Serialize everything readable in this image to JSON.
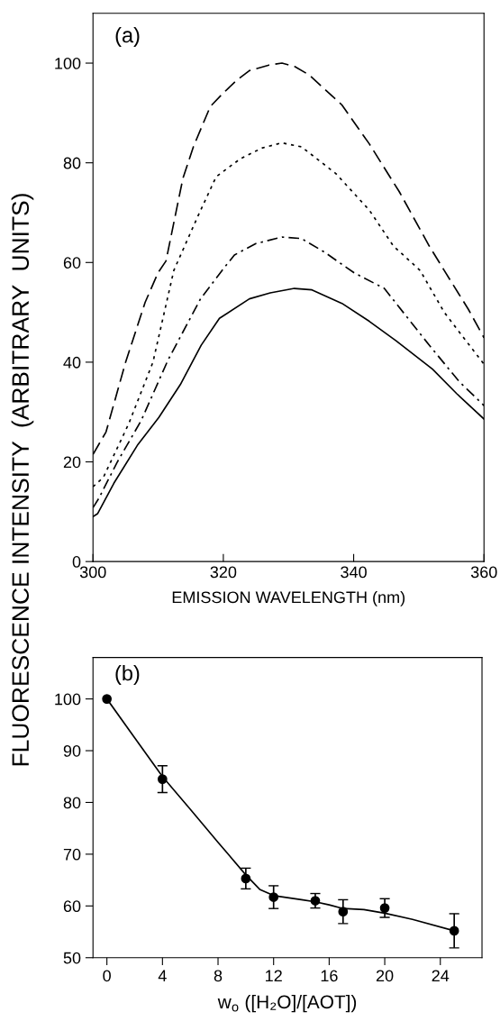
{
  "chart_data": [
    {
      "type": "line",
      "xlabel": "EMISSION WAVELENGTH (nm)",
      "ylabel": "FLUORESCENCE INTENSITY  (ARBITRARY  UNITS)",
      "annotations": [
        "(a)"
      ],
      "xlim": [
        300,
        360
      ],
      "xticks": [
        300,
        320,
        340,
        360
      ],
      "ylim": [
        0,
        110
      ],
      "yticks": [
        0,
        20,
        40,
        60,
        80,
        100
      ],
      "grid": false,
      "marker": "none",
      "series": [
        {
          "color": "#000000",
          "line_style": "dashed",
          "x": [
            300,
            302,
            305,
            308,
            310,
            311.2,
            313.8,
            315.4,
            318,
            320,
            322,
            324,
            327,
            329,
            331,
            333.2,
            338.2,
            342.4,
            347,
            351.6,
            353.9,
            357.6,
            360
          ],
          "values": [
            21.5,
            26,
            40,
            52,
            58,
            60.3,
            76.9,
            83.2,
            91.3,
            94,
            96.5,
            98.5,
            99.6,
            100,
            99.3,
            97.6,
            91.6,
            83.8,
            74.2,
            63.3,
            58.4,
            50.6,
            44.9
          ]
        },
        {
          "color": "#000000",
          "line_style": "dotted",
          "x": [
            300,
            301.6,
            305.5,
            309.2,
            312.4,
            316.1,
            318.9,
            322.6,
            326,
            329,
            332,
            337.3,
            342.4,
            346.1,
            350.2,
            353.9,
            356.7,
            360
          ],
          "values": [
            15,
            16.9,
            27.7,
            40,
            58.4,
            69.3,
            77.2,
            80.8,
            83,
            84,
            83.2,
            77.8,
            70.5,
            63.3,
            58.4,
            50,
            45.2,
            39.6
          ]
        },
        {
          "color": "#000000",
          "line_style": "dashdot",
          "x": [
            300,
            300.9,
            303.7,
            307.4,
            311.5,
            316.5,
            319.8,
            321.7,
            325,
            329,
            332,
            335.5,
            340.1,
            344.7,
            351.6,
            356.2,
            360
          ],
          "values": [
            10.8,
            12.7,
            19.9,
            28.3,
            40.4,
            52.7,
            58.4,
            61.5,
            63.8,
            65.1,
            64.8,
            62.1,
            57.9,
            54.8,
            43.4,
            36.1,
            31.3
          ]
        },
        {
          "color": "#000000",
          "line_style": "solid",
          "x": [
            300,
            300.7,
            303.2,
            306.9,
            310.1,
            313.4,
            316.6,
            319.4,
            324,
            327.2,
            330.9,
            333.6,
            338.2,
            342.4,
            346.5,
            352.1,
            355.8,
            360
          ],
          "values": [
            9,
            9.6,
            15.7,
            23.5,
            28.9,
            35.5,
            43.4,
            48.8,
            52.7,
            53.9,
            54.8,
            54.5,
            51.8,
            48.2,
            44.3,
            38.6,
            33.7,
            28.6
          ]
        }
      ]
    },
    {
      "type": "scatter",
      "xlabel": "w$_{o}$ ([H₂O]/[AOT])",
      "annotations": [
        "(b)"
      ],
      "xlim": [
        -1,
        27
      ],
      "xticks": [
        0,
        4,
        8,
        12,
        16,
        20,
        24
      ],
      "ylim": [
        50,
        108
      ],
      "yticks": [
        50,
        60,
        70,
        80,
        90,
        100
      ],
      "grid": false,
      "marker": "circle",
      "series": [
        {
          "type": "line",
          "color": "#000000",
          "line_style": "solid",
          "marker": "none",
          "x": [
            0,
            2,
            4,
            6,
            8,
            10,
            11,
            12,
            14,
            15,
            16,
            17,
            18.5,
            20,
            22,
            25
          ],
          "values": [
            100,
            92.5,
            85,
            78.7,
            72.3,
            66,
            63.2,
            62,
            61.2,
            60.8,
            60.2,
            59.5,
            59.3,
            58.6,
            57.4,
            55.2
          ]
        },
        {
          "type": "scatter",
          "color": "#000000",
          "x": [
            0,
            4,
            10,
            12,
            15,
            17,
            20,
            25
          ],
          "values": [
            100,
            84.5,
            65.3,
            61.7,
            61,
            58.9,
            59.6,
            55.2
          ],
          "errors": [
            null,
            2.6,
            2,
            2.2,
            1.4,
            2.3,
            1.8,
            3.3
          ]
        }
      ]
    }
  ]
}
